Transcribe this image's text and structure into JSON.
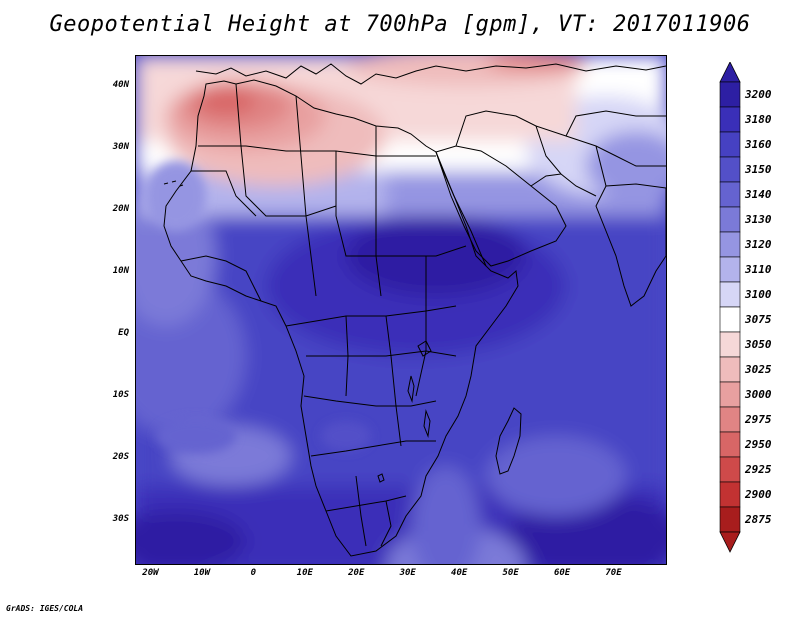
{
  "title": "Geopotential Height at 700hPa [gpm], VT: 2017011906",
  "credit": "GrADS: IGES/COLA",
  "map": {
    "region": "Africa",
    "lon_range": [
      -23,
      80
    ],
    "lat_range": [
      -37,
      45
    ],
    "lat_ticks": [
      {
        "value": 40,
        "label": "40N"
      },
      {
        "value": 30,
        "label": "30N"
      },
      {
        "value": 20,
        "label": "20N"
      },
      {
        "value": 10,
        "label": "10N"
      },
      {
        "value": 0,
        "label": "EQ"
      },
      {
        "value": -10,
        "label": "10S"
      },
      {
        "value": -20,
        "label": "20S"
      },
      {
        "value": -30,
        "label": "30S"
      }
    ],
    "lon_ticks": [
      {
        "value": -20,
        "label": "20W"
      },
      {
        "value": -10,
        "label": "10W"
      },
      {
        "value": 0,
        "label": "0"
      },
      {
        "value": 10,
        "label": "10E"
      },
      {
        "value": 20,
        "label": "20E"
      },
      {
        "value": 30,
        "label": "30E"
      },
      {
        "value": 40,
        "label": "40E"
      },
      {
        "value": 50,
        "label": "50E"
      },
      {
        "value": 60,
        "label": "60E"
      },
      {
        "value": 70,
        "label": "70E"
      }
    ]
  },
  "colorbar": {
    "levels": [
      "3200",
      "3180",
      "3160",
      "3150",
      "3140",
      "3130",
      "3120",
      "3110",
      "3100",
      "3075",
      "3050",
      "3025",
      "3000",
      "2975",
      "2950",
      "2925",
      "2900",
      "2875"
    ],
    "colors": [
      "#2d1fa3",
      "#3a2fb8",
      "#4641c2",
      "#5350c8",
      "#6563d0",
      "#7b7ad8",
      "#9595e2",
      "#b3b3ec",
      "#d6d6f6",
      "#ffffff",
      "#f6d8d8",
      "#efbcbc",
      "#e8a0a0",
      "#e08484",
      "#d86666",
      "#ce4a4a",
      "#c23232",
      "#a81d1d"
    ]
  }
}
